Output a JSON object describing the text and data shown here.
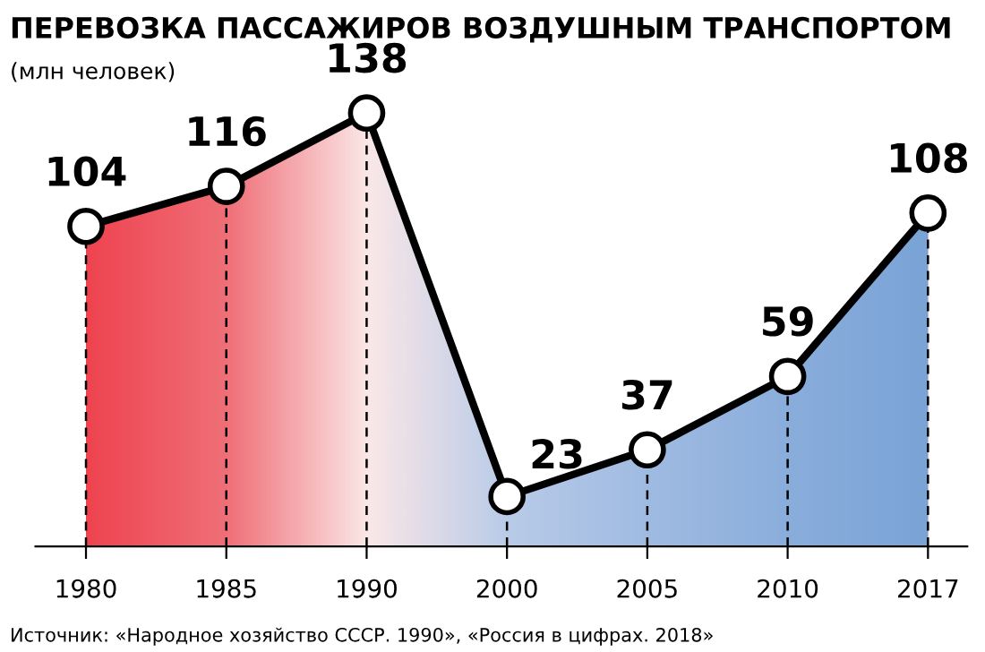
{
  "chart_data": {
    "type": "area",
    "title": "ПЕРЕВОЗКА ПАССАЖИРОВ ВОЗДУШНЫМ ТРАНСПОРТОМ",
    "subtitle": "(млн человек)",
    "categories": [
      "1980",
      "1985",
      "1990",
      "2000",
      "2005",
      "2010",
      "2017"
    ],
    "series": [
      {
        "values": [
          104,
          116,
          138,
          23,
          37,
          59,
          108
        ],
        "color": "#000000"
      }
    ],
    "colors": [
      "#ee4450",
      "#f07078",
      "#fbe8e8",
      "#b9cbe8",
      "#a0bbe2",
      "#8aaedc",
      "#7aa3d6"
    ],
    "data_labels": true,
    "marker": "circle",
    "grid": "x",
    "annotations": [
      "Источник: «Народное хозяйство СССР. 1990», «Россия в цифрах. 2018»"
    ]
  }
}
